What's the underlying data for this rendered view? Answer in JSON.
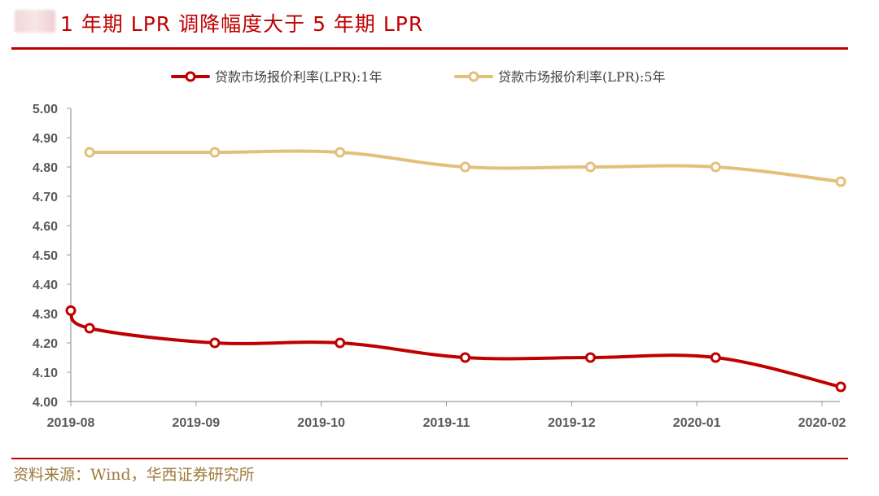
{
  "title": "1 年期 LPR 调降幅度大于 5 年期 LPR",
  "source": "资料来源：Wind，华西证券研究所",
  "colors": {
    "accent": "#c00000",
    "series_1y": "#c00000",
    "series_5y": "#e2c07a",
    "source_text": "#9c7a3c"
  },
  "chart_data": {
    "type": "line",
    "title": "1 年期 LPR 调降幅度大于 5 年期 LPR",
    "xlabel": "",
    "ylabel": "",
    "categories": [
      "2019-08",
      "2019-09",
      "2019-10",
      "2019-11",
      "2019-12",
      "2020-01",
      "2020-02"
    ],
    "ylim": [
      4.0,
      5.0
    ],
    "yticks": [
      "4.00",
      "4.10",
      "4.20",
      "4.30",
      "4.40",
      "4.50",
      "4.60",
      "4.70",
      "4.80",
      "4.90",
      "5.00"
    ],
    "legend_position": "top-center",
    "series": [
      {
        "name": "贷款市场报价利率(LPR):1年",
        "color": "#c00000",
        "points": [
          {
            "x": 0.0,
            "y": 4.31
          },
          {
            "x": 0.15,
            "y": 4.25
          },
          {
            "x": 1.15,
            "y": 4.2
          },
          {
            "x": 2.15,
            "y": 4.2
          },
          {
            "x": 3.15,
            "y": 4.15
          },
          {
            "x": 4.15,
            "y": 4.15
          },
          {
            "x": 5.15,
            "y": 4.15
          },
          {
            "x": 6.15,
            "y": 4.05
          }
        ]
      },
      {
        "name": "贷款市场报价利率(LPR):5年",
        "color": "#e2c07a",
        "points": [
          {
            "x": 0.15,
            "y": 4.85
          },
          {
            "x": 1.15,
            "y": 4.85
          },
          {
            "x": 2.15,
            "y": 4.85
          },
          {
            "x": 3.15,
            "y": 4.8
          },
          {
            "x": 4.15,
            "y": 4.8
          },
          {
            "x": 5.15,
            "y": 4.8
          },
          {
            "x": 6.15,
            "y": 4.75
          }
        ]
      }
    ]
  }
}
